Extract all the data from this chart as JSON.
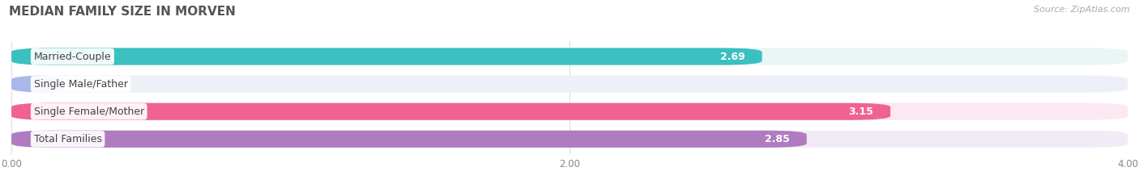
{
  "title": "MEDIAN FAMILY SIZE IN MORVEN",
  "source": "Source: ZipAtlas.com",
  "categories": [
    "Married-Couple",
    "Single Male/Father",
    "Single Female/Mother",
    "Total Families"
  ],
  "values": [
    2.69,
    0.0,
    3.15,
    2.85
  ],
  "bar_colors": [
    "#3bbfbf",
    "#a8b8e8",
    "#f06292",
    "#b07cc0"
  ],
  "bar_background_colors": [
    "#eaf6f6",
    "#eef0f8",
    "#fce8f2",
    "#f2eaf5"
  ],
  "xlim": [
    0,
    4.0
  ],
  "xticks": [
    0.0,
    2.0,
    4.0
  ],
  "xtick_labels": [
    "0.00",
    "2.00",
    "4.00"
  ],
  "value_fontsize": 9,
  "label_fontsize": 9,
  "title_fontsize": 11,
  "background_color": "#ffffff"
}
